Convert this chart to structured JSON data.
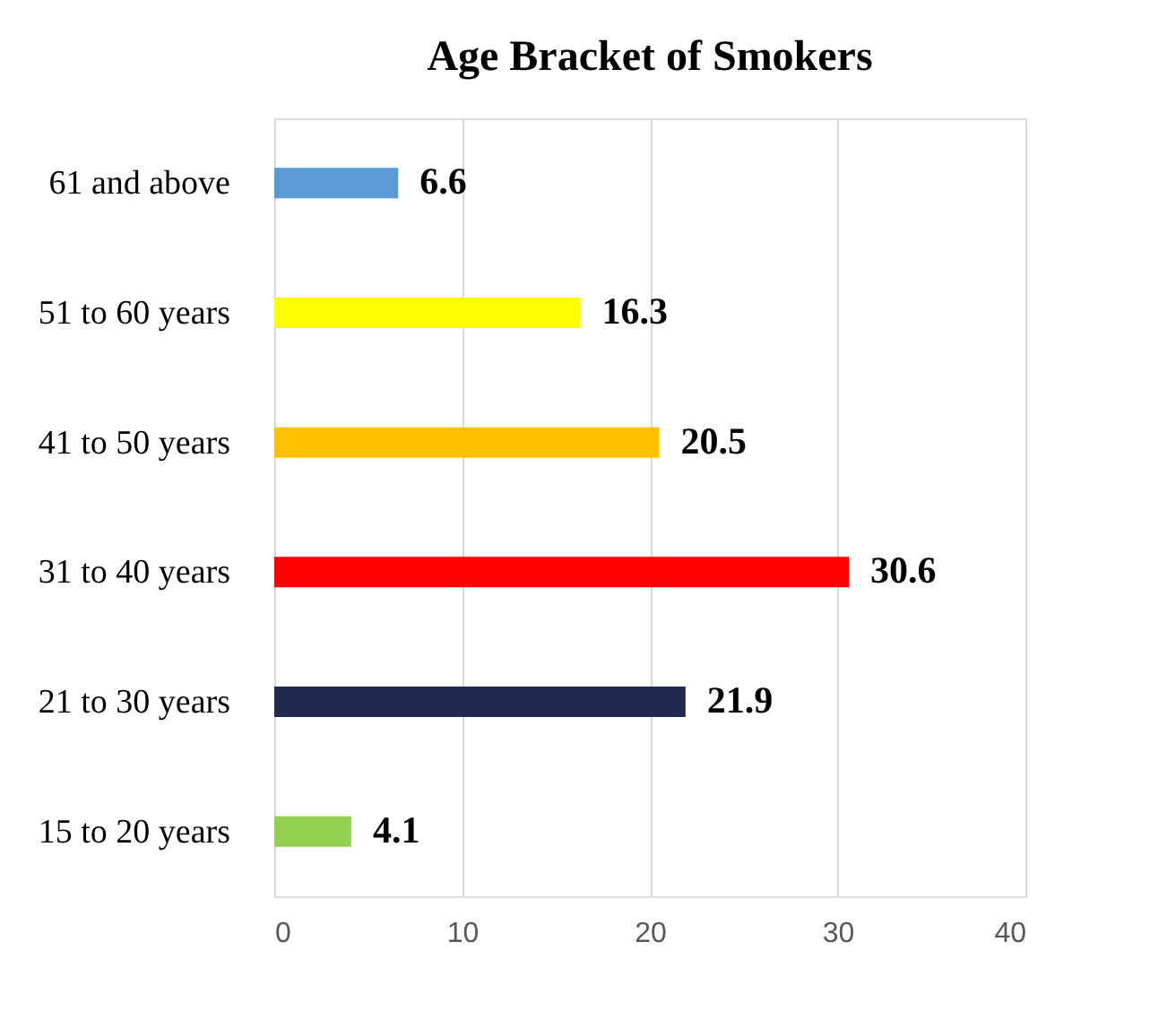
{
  "chart_data": {
    "type": "bar",
    "orientation": "horizontal",
    "title": "Age Bracket of Smokers",
    "categories": [
      "61 and above",
      "51 to 60 years",
      "41 to 50 years",
      "31 to 40 years",
      "21 to 30 years",
      "15 to 20 years"
    ],
    "values": [
      6.6,
      16.3,
      20.5,
      30.6,
      21.9,
      4.1
    ],
    "colors": [
      "#5b9bd5",
      "#ffff00",
      "#ffc000",
      "#ff0000",
      "#222a4f",
      "#92d050"
    ],
    "xlim": [
      0,
      40
    ],
    "xticks": [
      0,
      10,
      20,
      30,
      40
    ],
    "grid": "x",
    "data_labels": true
  }
}
